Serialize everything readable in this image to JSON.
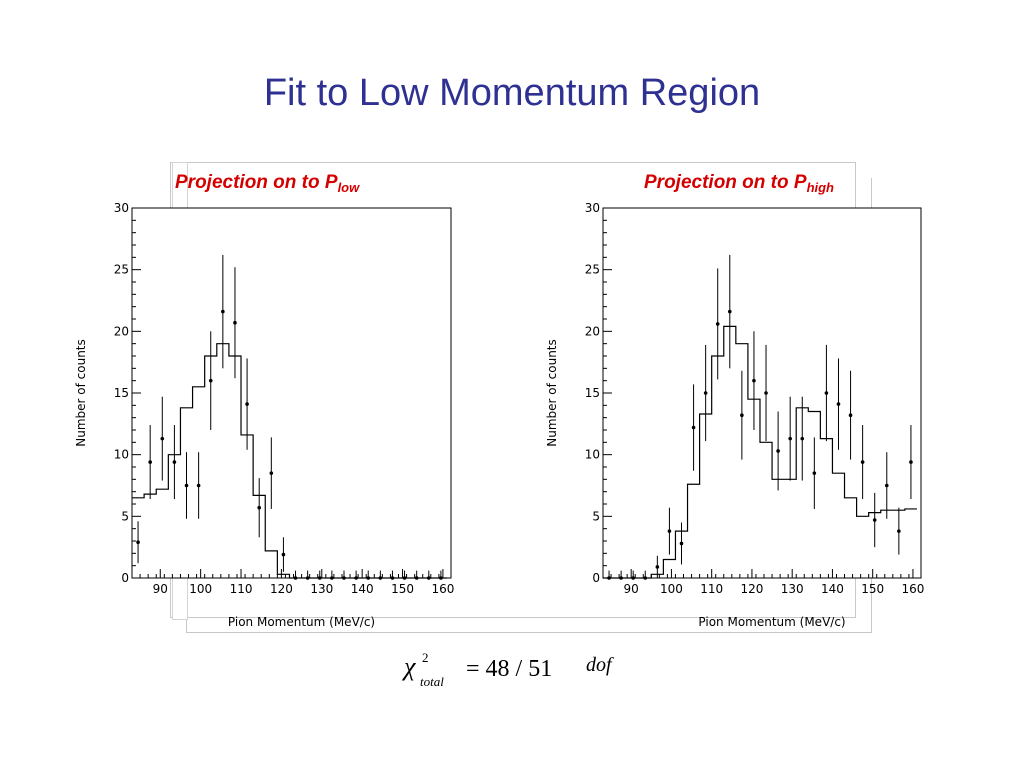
{
  "slide": {
    "title": "Fit to Low Momentum Region",
    "left_heading": "Projection on to P",
    "left_heading_sub": "low",
    "right_heading": "Projection on to P",
    "right_heading_sub": "high",
    "formula_rhs": "= 48 / 51",
    "formula_unit": "dof",
    "formula_symbol": "χ",
    "formula_sup": "2",
    "formula_sub": "total"
  },
  "chart_data": [
    {
      "type": "histogram",
      "title": "Projection on to P_low",
      "xlabel": "Pion Momentum (MeV/c)",
      "ylabel": "Number of counts",
      "xlim": [
        83,
        162
      ],
      "ylim": [
        0,
        30
      ],
      "x_ticks": [
        90,
        100,
        110,
        120,
        130,
        140,
        150,
        160
      ],
      "y_ticks": [
        0,
        5,
        10,
        15,
        20,
        25,
        30
      ],
      "grid": false,
      "series": [
        {
          "role": "fit",
          "style": "step",
          "bin_edges": [
            83,
            86,
            89,
            92,
            95,
            98,
            101,
            104,
            107,
            110,
            113,
            116,
            119,
            122,
            125,
            128,
            131,
            134,
            137,
            140,
            143,
            146,
            149,
            152,
            155,
            158,
            161
          ],
          "values": [
            6.5,
            6.8,
            7.2,
            10,
            13.8,
            15.5,
            18,
            19,
            18,
            11.6,
            6.7,
            2.2,
            0.3,
            0,
            0,
            0,
            0,
            0,
            0,
            0,
            0,
            0,
            0,
            0,
            0,
            0
          ]
        },
        {
          "role": "data",
          "style": "points_with_errorbars",
          "points": [
            {
              "x": 84.5,
              "y": 2.9,
              "err": 1.7
            },
            {
              "x": 87.5,
              "y": 9.4,
              "err": 3.0
            },
            {
              "x": 90.5,
              "y": 11.3,
              "err": 3.4
            },
            {
              "x": 93.5,
              "y": 9.4,
              "err": 3.0
            },
            {
              "x": 96.5,
              "y": 7.5,
              "err": 2.7
            },
            {
              "x": 99.5,
              "y": 7.5,
              "err": 2.7
            },
            {
              "x": 102.5,
              "y": 16.0,
              "err": 4.0
            },
            {
              "x": 105.5,
              "y": 21.6,
              "err": 4.6
            },
            {
              "x": 108.5,
              "y": 20.7,
              "err": 4.5
            },
            {
              "x": 111.5,
              "y": 14.1,
              "err": 3.7
            },
            {
              "x": 114.5,
              "y": 5.7,
              "err": 2.4
            },
            {
              "x": 117.5,
              "y": 8.5,
              "err": 2.9
            },
            {
              "x": 120.5,
              "y": 1.9,
              "err": 1.4
            },
            {
              "x": 123.5,
              "y": 0,
              "err": 0.6
            },
            {
              "x": 126.5,
              "y": 0,
              "err": 0.6
            },
            {
              "x": 129.5,
              "y": 0,
              "err": 0.6
            },
            {
              "x": 132.5,
              "y": 0,
              "err": 0.6
            },
            {
              "x": 135.5,
              "y": 0,
              "err": 0.6
            },
            {
              "x": 138.5,
              "y": 0,
              "err": 0.6
            },
            {
              "x": 141.5,
              "y": 0,
              "err": 0.6
            },
            {
              "x": 144.5,
              "y": 0,
              "err": 0.6
            },
            {
              "x": 147.5,
              "y": 0,
              "err": 0.6
            },
            {
              "x": 150.5,
              "y": 0,
              "err": 0.6
            },
            {
              "x": 153.5,
              "y": 0,
              "err": 0.6
            },
            {
              "x": 156.5,
              "y": 0,
              "err": 0.6
            },
            {
              "x": 159.5,
              "y": 0,
              "err": 0.6
            }
          ]
        }
      ]
    },
    {
      "type": "histogram",
      "title": "Projection on to P_high",
      "xlabel": "Pion Momentum (MeV/c)",
      "ylabel": "Number of counts",
      "xlim": [
        83,
        162
      ],
      "ylim": [
        0,
        30
      ],
      "x_ticks": [
        90,
        100,
        110,
        120,
        130,
        140,
        150,
        160
      ],
      "y_ticks": [
        0,
        5,
        10,
        15,
        20,
        25,
        30
      ],
      "grid": false,
      "series": [
        {
          "role": "fit",
          "style": "step",
          "bin_edges": [
            83,
            86,
            89,
            92,
            95,
            98,
            101,
            104,
            107,
            110,
            113,
            116,
            119,
            122,
            125,
            128,
            131,
            134,
            137,
            140,
            143,
            146,
            149,
            152,
            155,
            158,
            161
          ],
          "values": [
            0,
            0,
            0,
            0,
            0.3,
            1.5,
            3.8,
            7.6,
            13.3,
            18,
            20.4,
            19,
            14.5,
            11,
            8,
            8,
            13.8,
            13.5,
            11.3,
            8.5,
            6.5,
            5,
            5.3,
            5.5,
            5.5,
            5.6
          ]
        },
        {
          "role": "data",
          "style": "points_with_errorbars",
          "points": [
            {
              "x": 84.5,
              "y": 0,
              "err": 0.6
            },
            {
              "x": 87.5,
              "y": 0,
              "err": 0.6
            },
            {
              "x": 90.5,
              "y": 0,
              "err": 0.6
            },
            {
              "x": 93.5,
              "y": 0,
              "err": 0.6
            },
            {
              "x": 96.5,
              "y": 0.9,
              "err": 0.9
            },
            {
              "x": 99.5,
              "y": 3.8,
              "err": 1.9
            },
            {
              "x": 102.5,
              "y": 2.8,
              "err": 1.7
            },
            {
              "x": 105.5,
              "y": 12.2,
              "err": 3.5
            },
            {
              "x": 108.5,
              "y": 15.0,
              "err": 3.9
            },
            {
              "x": 111.5,
              "y": 20.6,
              "err": 4.5
            },
            {
              "x": 114.5,
              "y": 21.6,
              "err": 4.6
            },
            {
              "x": 117.5,
              "y": 13.2,
              "err": 3.6
            },
            {
              "x": 120.5,
              "y": 16.0,
              "err": 4.0
            },
            {
              "x": 123.5,
              "y": 15.0,
              "err": 3.9
            },
            {
              "x": 126.5,
              "y": 10.3,
              "err": 3.2
            },
            {
              "x": 129.5,
              "y": 11.3,
              "err": 3.4
            },
            {
              "x": 132.5,
              "y": 11.3,
              "err": 3.4
            },
            {
              "x": 135.5,
              "y": 8.5,
              "err": 2.9
            },
            {
              "x": 138.5,
              "y": 15.0,
              "err": 3.9
            },
            {
              "x": 141.5,
              "y": 14.1,
              "err": 3.7
            },
            {
              "x": 144.5,
              "y": 13.2,
              "err": 3.6
            },
            {
              "x": 147.5,
              "y": 9.4,
              "err": 3.0
            },
            {
              "x": 150.5,
              "y": 4.7,
              "err": 2.2
            },
            {
              "x": 153.5,
              "y": 7.5,
              "err": 2.7
            },
            {
              "x": 156.5,
              "y": 3.8,
              "err": 1.9
            },
            {
              "x": 159.5,
              "y": 9.4,
              "err": 3.0
            }
          ]
        }
      ]
    }
  ]
}
